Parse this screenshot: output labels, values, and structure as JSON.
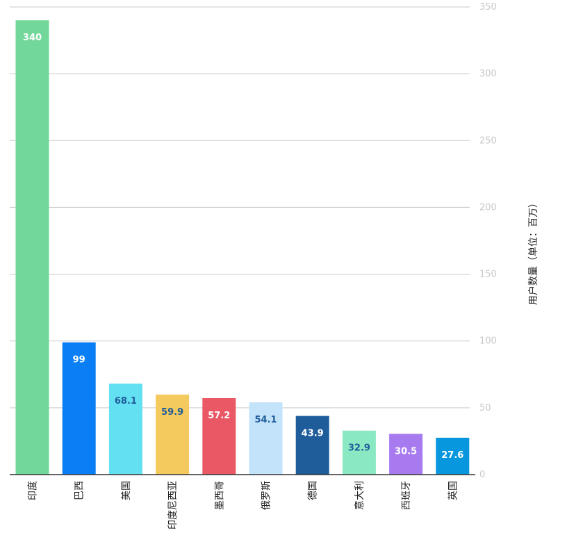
{
  "chart_data": {
    "type": "bar",
    "categories": [
      "印度",
      "巴西",
      "美国",
      "印度尼西亚",
      "墨西哥",
      "俄罗斯",
      "德国",
      "意大利",
      "西班牙",
      "英国"
    ],
    "values": [
      340,
      99,
      68.1,
      59.9,
      57.2,
      54.1,
      43.9,
      32.9,
      30.5,
      27.6
    ],
    "data_labels": [
      "340",
      "99",
      "68.1",
      "59.9",
      "57.2",
      "54.1",
      "43.9",
      "32.9",
      "30.5",
      "27.6"
    ],
    "colors": [
      "#72d89a",
      "#0a7ff5",
      "#63e0f1",
      "#f4c95d",
      "#ea5765",
      "#c3e3fb",
      "#1f5c9a",
      "#8ae9c2",
      "#a87af0",
      "#0797df"
    ],
    "label_colors": [
      "#ffffff",
      "#ffffff",
      "#1f5c9a",
      "#1f5c9a",
      "#ffffff",
      "#1f5c9a",
      "#ffffff",
      "#1f5c9a",
      "#ffffff",
      "#ffffff"
    ],
    "title": "",
    "xlabel": "",
    "ylabel": "用户数量（单位：百万）",
    "ylim": [
      0,
      350
    ],
    "yticks": [
      0,
      50,
      100,
      150,
      200,
      250,
      300,
      350
    ],
    "ytick_labels": [
      "0",
      "50",
      "100",
      "150",
      "200",
      "250",
      "300",
      "350"
    ],
    "y_axis_side": "right",
    "grid": true
  }
}
